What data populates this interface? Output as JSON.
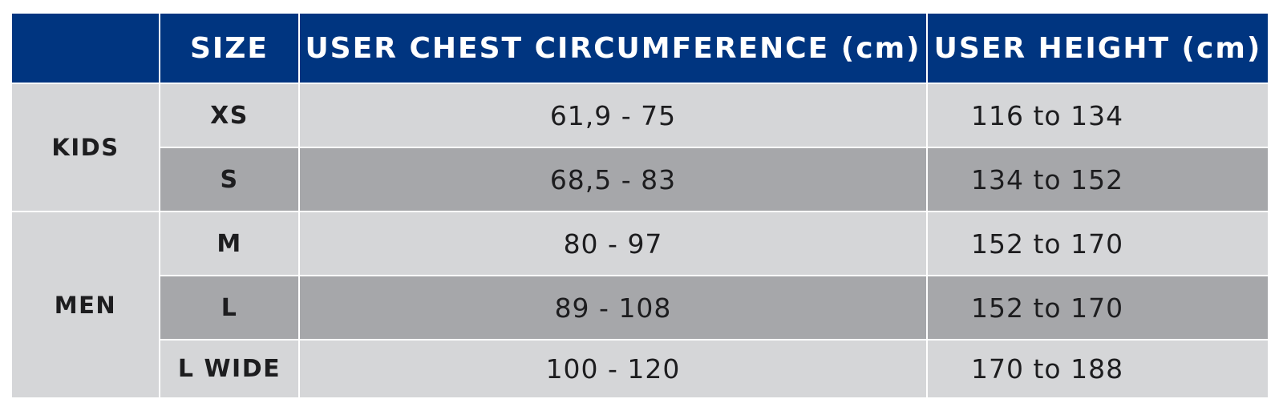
{
  "table": {
    "headers": {
      "group": "",
      "size": "SIZE",
      "chest": "USER CHEST CIRCUMFERENCE (cm)",
      "height": "USER HEIGHT (cm)"
    },
    "groups": [
      {
        "label": "KIDS"
      },
      {
        "label": "MEN"
      }
    ],
    "rows": [
      {
        "size": "XS",
        "chest": "61,9 - 75",
        "height": "116 to 134"
      },
      {
        "size": "S",
        "chest": "68,5 - 83",
        "height": "134 to 152"
      },
      {
        "size": "M",
        "chest": "80 - 97",
        "height": "152 to 170"
      },
      {
        "size": "L",
        "chest": "89 - 108",
        "height": "152 to 170"
      },
      {
        "size": "L WIDE",
        "chest": "100 - 120",
        "height": "170 to 188"
      }
    ]
  },
  "colors": {
    "header_bg": "#003580",
    "header_text": "#ffffff",
    "row_light": "#d5d6d8",
    "row_dark": "#a6a7aa",
    "text_dark": "#1d1d1f"
  }
}
